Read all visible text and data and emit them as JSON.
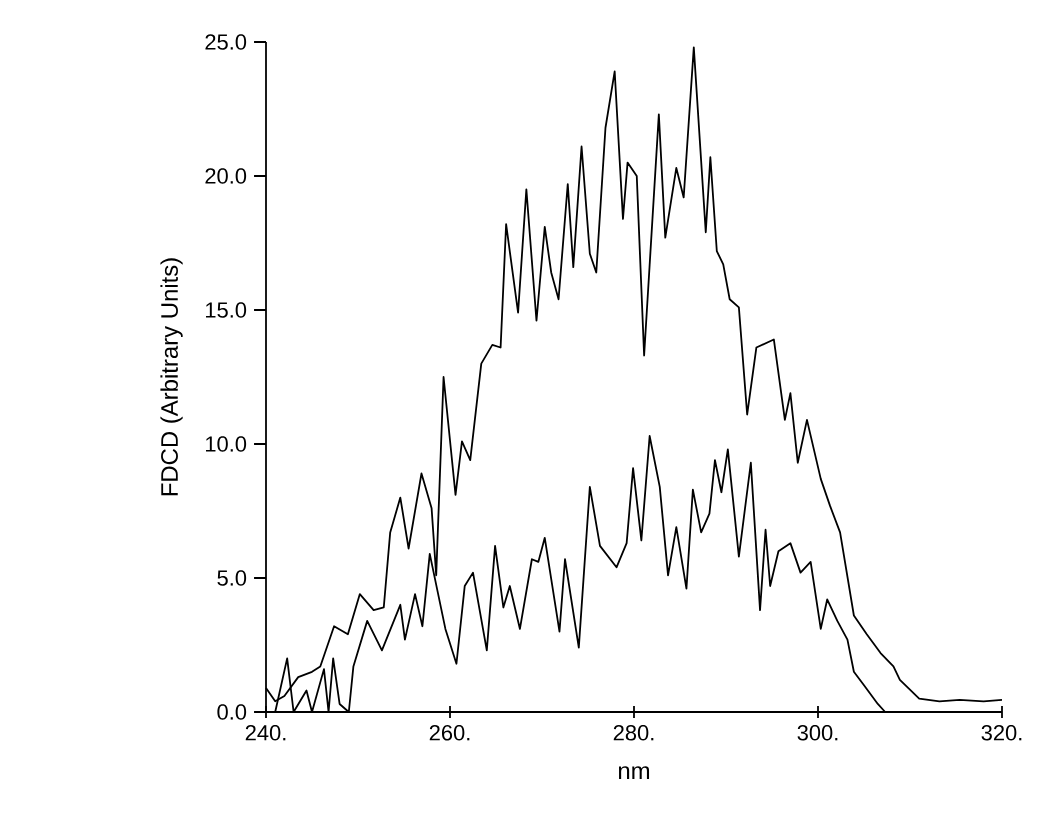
{
  "chart_data": {
    "type": "line",
    "xlabel": "nm",
    "ylabel": "FDCD (Arbitrary Units)",
    "xlim": [
      240,
      320
    ],
    "ylim": [
      0,
      25
    ],
    "xticks": [
      {
        "value": 240,
        "label": "240."
      },
      {
        "value": 260,
        "label": "260."
      },
      {
        "value": 280,
        "label": "280."
      },
      {
        "value": 300,
        "label": "300."
      },
      {
        "value": 320,
        "label": "320."
      }
    ],
    "yticks": [
      {
        "value": 0,
        "label": "0.0"
      },
      {
        "value": 5,
        "label": "5.0"
      },
      {
        "value": 10,
        "label": "10.0"
      },
      {
        "value": 15,
        "label": "15.0"
      },
      {
        "value": 20,
        "label": "20.0"
      },
      {
        "value": 25,
        "label": "25.0"
      }
    ],
    "grid": false,
    "marker": "none",
    "line_style": "solid",
    "series": [
      {
        "color": "#000000",
        "x": [
          240,
          241,
          242,
          243.5,
          245,
          245.9,
          247.4,
          248.9,
          250.2,
          251.7,
          252.8,
          253.5,
          254.6,
          255.5,
          256.9,
          258,
          258.5,
          259.3,
          260.6,
          261.3,
          262.2,
          263.4,
          264.6,
          265.5,
          266.1,
          267.4,
          268.3,
          269.4,
          270.3,
          271,
          271.8,
          272.8,
          273.4,
          274.3,
          275.2,
          275.9,
          276.9,
          277.9,
          278.8,
          279.3,
          280.3,
          281.1,
          282.7,
          283.4,
          284.6,
          285.4,
          286.5,
          287.8,
          288.3,
          289,
          289.7,
          290.4,
          291.4,
          292.3,
          293.3,
          295.2,
          296.4,
          297,
          297.8,
          298.8,
          300.3,
          301.3,
          302.4,
          303.9,
          305.3,
          306.8,
          308.2,
          308.9,
          311,
          313.2,
          315.4,
          318,
          320
        ],
        "values": [
          0.9,
          0.4,
          0.6,
          1.3,
          1.5,
          1.7,
          3.2,
          2.9,
          4.4,
          3.8,
          3.9,
          6.7,
          8.0,
          6.1,
          8.9,
          7.6,
          5.1,
          12.5,
          8.1,
          10.1,
          9.4,
          13.0,
          13.7,
          13.6,
          18.2,
          14.9,
          19.5,
          14.6,
          18.1,
          16.4,
          15.4,
          19.7,
          16.6,
          21.1,
          17.1,
          16.4,
          21.8,
          23.9,
          18.4,
          20.5,
          20.0,
          13.3,
          22.3,
          17.7,
          20.3,
          19.2,
          24.8,
          17.9,
          20.7,
          17.2,
          16.7,
          15.4,
          15.1,
          11.1,
          13.6,
          13.9,
          10.9,
          11.9,
          9.3,
          10.9,
          8.7,
          7.7,
          6.7,
          3.6,
          2.9,
          2.2,
          1.7,
          1.2,
          0.5,
          0.4,
          0.45,
          0.4,
          0.45
        ]
      },
      {
        "color": "#000000",
        "x": [
          241,
          242.3,
          243,
          244.4,
          245,
          246.3,
          246.8,
          247.3,
          248,
          249,
          249.5,
          251,
          252.6,
          254.6,
          255.1,
          256.2,
          257,
          257.8,
          259.5,
          260.7,
          261.6,
          262.5,
          264,
          264.9,
          265.8,
          266.5,
          267.6,
          268.9,
          269.6,
          270.3,
          271.9,
          272.5,
          274,
          275.2,
          276.3,
          278.1,
          279.2,
          279.9,
          280.8,
          281.7,
          282.8,
          283.7,
          284.6,
          285.7,
          286.4,
          287.3,
          288.2,
          288.8,
          289.5,
          290.2,
          291.4,
          292.7,
          293.7,
          294.3,
          294.8,
          295.7,
          297,
          298.1,
          299.2,
          300.3,
          301,
          302.1,
          303.2,
          303.9,
          305,
          306.5,
          307.3
        ],
        "values": [
          0,
          2.0,
          0,
          0.8,
          0,
          1.6,
          0,
          2.0,
          0.3,
          0,
          1.7,
          3.4,
          2.3,
          4.0,
          2.7,
          4.4,
          3.2,
          5.9,
          3.1,
          1.8,
          4.7,
          5.2,
          2.3,
          6.2,
          3.9,
          4.7,
          3.1,
          5.7,
          5.6,
          6.5,
          3.0,
          5.7,
          2.4,
          8.4,
          6.2,
          5.4,
          6.3,
          9.1,
          6.4,
          10.3,
          8.4,
          5.1,
          6.9,
          4.6,
          8.3,
          6.7,
          7.4,
          9.4,
          8.2,
          9.8,
          5.8,
          9.3,
          3.8,
          6.8,
          4.7,
          6.0,
          6.3,
          5.2,
          5.6,
          3.1,
          4.2,
          3.4,
          2.7,
          1.5,
          1.0,
          0.3,
          0
        ]
      }
    ]
  }
}
